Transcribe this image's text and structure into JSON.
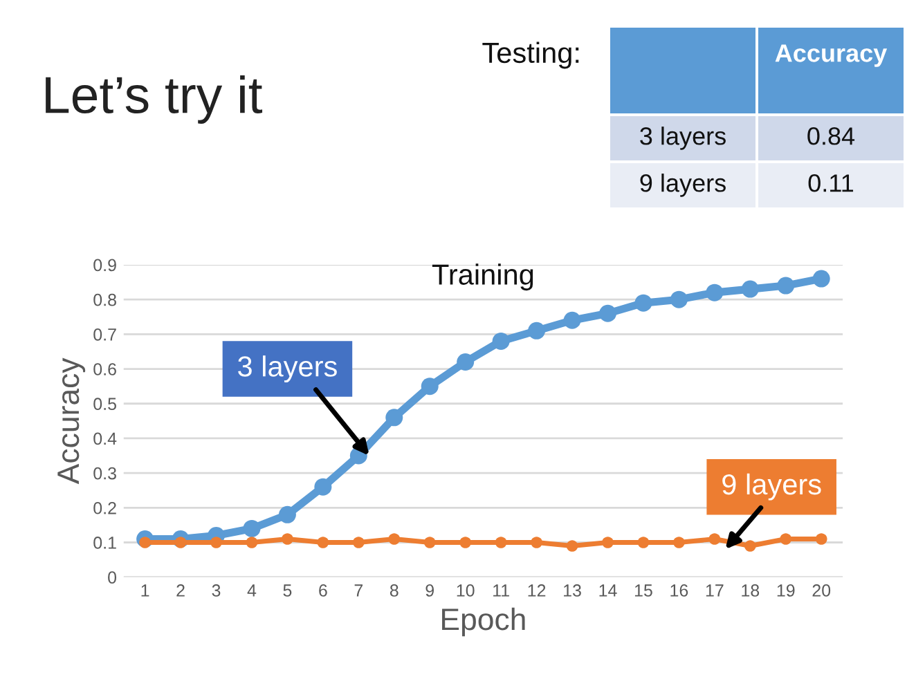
{
  "chart_data": [
    {
      "type": "other",
      "title": "Let’s try it",
      "annotations": [
        "Testing:",
        "Accuracy",
        "3 layers",
        "0.84",
        "9 layers",
        "0.11"
      ]
    },
    {
      "type": "line",
      "title": "Training",
      "xlabel": "Epoch",
      "ylabel": "Accuracy",
      "categories": [
        "1",
        "2",
        "3",
        "4",
        "5",
        "6",
        "7",
        "8",
        "9",
        "10",
        "11",
        "12",
        "13",
        "14",
        "15",
        "16",
        "17",
        "18",
        "19",
        "20"
      ],
      "series": [
        {
          "name": "3 layers",
          "color": "#5b9bd5",
          "values": [
            0.11,
            0.11,
            0.12,
            0.14,
            0.18,
            0.26,
            0.35,
            0.46,
            0.55,
            0.62,
            0.68,
            0.71,
            0.74,
            0.76,
            0.79,
            0.8,
            0.82,
            0.83,
            0.84,
            0.86
          ]
        },
        {
          "name": "9 layers",
          "color": "#ed7d31",
          "values": [
            0.1,
            0.1,
            0.1,
            0.1,
            0.11,
            0.1,
            0.1,
            0.11,
            0.1,
            0.1,
            0.1,
            0.1,
            0.09,
            0.1,
            0.1,
            0.1,
            0.11,
            0.09,
            0.11,
            0.11
          ]
        }
      ],
      "ylim": [
        0,
        0.9
      ],
      "yticks": [
        0,
        0.1,
        0.2,
        0.3,
        0.4,
        0.5,
        0.6,
        0.7,
        0.8,
        0.9
      ],
      "grid": "y",
      "legend": false,
      "marker": "circle",
      "line_style": "solid"
    }
  ]
}
